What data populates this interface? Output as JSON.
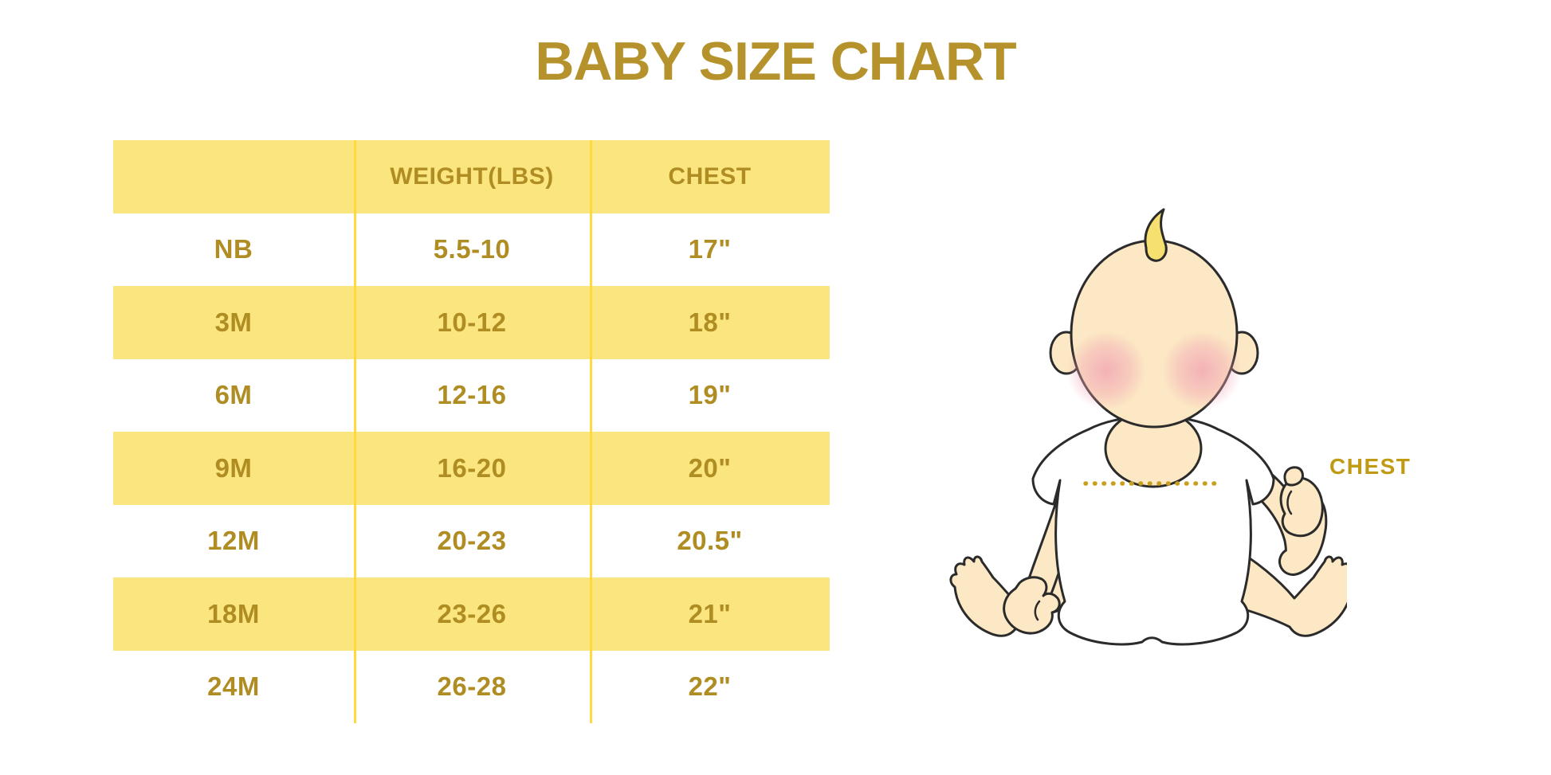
{
  "title": "BABY SIZE CHART",
  "chart_data": {
    "type": "table",
    "title": "BABY SIZE CHART",
    "columns": [
      "",
      "WEIGHT(LBS)",
      "CHEST"
    ],
    "rows": [
      [
        "NB",
        "5.5-10",
        "17\""
      ],
      [
        "3M",
        "10-12",
        "18\""
      ],
      [
        "6M",
        "12-16",
        "19\""
      ],
      [
        "9M",
        "16-20",
        "20\""
      ],
      [
        "12M",
        "20-23",
        "20.5\""
      ],
      [
        "18M",
        "23-26",
        "21\""
      ],
      [
        "24M",
        "26-28",
        "22\""
      ]
    ],
    "striped": true,
    "stripe_pattern": "header and alternating data rows filled yellow"
  },
  "diagram": {
    "label": "CHEST"
  },
  "colors": {
    "background": "#FFFFFF",
    "row_yellow": "#FBE57E",
    "divider_yellow": "#FFD93E",
    "table_text_gold": "#AF8D23",
    "title_gold": "#B5922B",
    "label_gold": "#C09A12",
    "dotted_line_gold": "#C8A01E",
    "baby_skin": "#FCE8C4",
    "baby_blush": "#F2A8B5",
    "baby_hair": "#F6E170",
    "outline": "#2B2B2B"
  }
}
